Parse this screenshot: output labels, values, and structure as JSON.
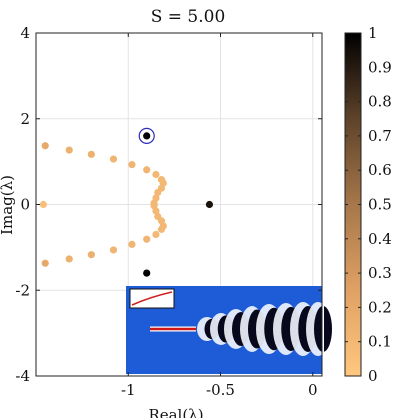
{
  "chart_data": {
    "type": "scatter",
    "title": "S = 5.00",
    "xlabel": "Real(λ)",
    "ylabel": "Imag(λ)",
    "xlim": [
      -1.5,
      0.05
    ],
    "ylim": [
      -4,
      4
    ],
    "xticks": [
      -1,
      -0.5,
      0
    ],
    "xtick_labels": [
      "-1",
      "-0.5",
      "0"
    ],
    "yticks": [
      -4,
      -2,
      0,
      2,
      4
    ],
    "ytick_labels": [
      "-4",
      "-2",
      "0",
      "2",
      "4"
    ],
    "grid": true,
    "colormap": "copper (reversed)",
    "colorbar": {
      "range": [
        0,
        1
      ],
      "ticks": [
        0,
        0.1,
        0.2,
        0.3,
        0.4,
        0.5,
        0.6,
        0.7,
        0.8,
        0.9,
        1
      ],
      "tick_labels": [
        "0",
        "0.1",
        "0.2",
        "0.3",
        "0.4",
        "0.5",
        "0.6",
        "0.7",
        "0.8",
        "0.9",
        "1"
      ]
    },
    "points": [
      {
        "x": -1.45,
        "y": 1.37,
        "c": 0.2
      },
      {
        "x": -1.32,
        "y": 1.27,
        "c": 0.15
      },
      {
        "x": -1.2,
        "y": 1.17,
        "c": 0.15
      },
      {
        "x": -1.08,
        "y": 1.06,
        "c": 0.12
      },
      {
        "x": -0.98,
        "y": 0.93,
        "c": 0.12
      },
      {
        "x": -0.9,
        "y": 0.81,
        "c": 0.12
      },
      {
        "x": -0.85,
        "y": 0.7,
        "c": 0.1
      },
      {
        "x": -0.82,
        "y": 0.58,
        "c": 0.1
      },
      {
        "x": -0.81,
        "y": 0.5,
        "c": 0.1
      },
      {
        "x": -0.82,
        "y": 0.38,
        "c": 0.1
      },
      {
        "x": -0.84,
        "y": 0.28,
        "c": 0.1
      },
      {
        "x": -0.85,
        "y": 0.15,
        "c": 0.1
      },
      {
        "x": -0.86,
        "y": 0.03,
        "c": 0.1
      },
      {
        "x": -1.46,
        "y": 0.0,
        "c": 0.05
      },
      {
        "x": -0.86,
        "y": -0.03,
        "c": 0.1
      },
      {
        "x": -0.85,
        "y": -0.15,
        "c": 0.1
      },
      {
        "x": -0.84,
        "y": -0.28,
        "c": 0.1
      },
      {
        "x": -0.82,
        "y": -0.38,
        "c": 0.1
      },
      {
        "x": -0.81,
        "y": -0.5,
        "c": 0.1
      },
      {
        "x": -0.82,
        "y": -0.58,
        "c": 0.1
      },
      {
        "x": -0.85,
        "y": -0.7,
        "c": 0.1
      },
      {
        "x": -0.9,
        "y": -0.81,
        "c": 0.12
      },
      {
        "x": -0.98,
        "y": -0.93,
        "c": 0.12
      },
      {
        "x": -1.08,
        "y": -1.06,
        "c": 0.12
      },
      {
        "x": -1.2,
        "y": -1.17,
        "c": 0.15
      },
      {
        "x": -1.32,
        "y": -1.27,
        "c": 0.15
      },
      {
        "x": -1.45,
        "y": -1.37,
        "c": 0.2
      },
      {
        "x": -0.56,
        "y": 0.0,
        "c": 0.93
      },
      {
        "x": -0.9,
        "y": -1.6,
        "c": 1.0
      },
      {
        "x": -0.9,
        "y": 1.6,
        "c": 1.0,
        "highlighted": true
      }
    ],
    "inset": {
      "description_type": "flow field image",
      "background": "#1e5bd6"
    }
  }
}
